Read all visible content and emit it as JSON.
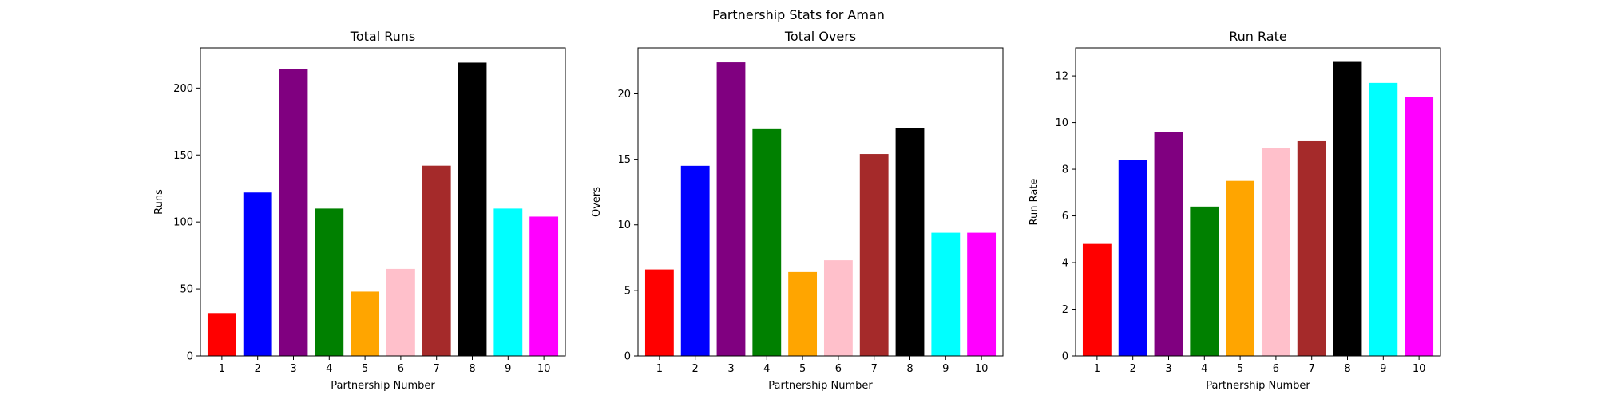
{
  "figure": {
    "title": "Partnership Stats for Aman"
  },
  "bar_colors": [
    "#ff0000",
    "#0000ff",
    "#800080",
    "#008000",
    "#ffa500",
    "#ffc0cb",
    "#a52a2a",
    "#000000",
    "#00ffff",
    "#ff00ff"
  ],
  "chart_data": [
    {
      "type": "bar",
      "title": "Total Runs",
      "xlabel": "Partnership Number",
      "ylabel": "Runs",
      "categories": [
        "1",
        "2",
        "3",
        "4",
        "5",
        "6",
        "7",
        "8",
        "9",
        "10"
      ],
      "values": [
        32,
        122,
        214,
        110,
        48,
        65,
        142,
        219,
        110,
        104
      ],
      "ylim": [
        0,
        230
      ],
      "yticks": [
        0,
        50,
        100,
        150,
        200
      ],
      "ytick_labels": [
        "0",
        "50",
        "100",
        "150",
        "200"
      ],
      "grid": false,
      "legend": "none"
    },
    {
      "type": "bar",
      "title": "Total Overs",
      "xlabel": "Partnership Number",
      "ylabel": "Overs",
      "categories": [
        "1",
        "2",
        "3",
        "4",
        "5",
        "6",
        "7",
        "8",
        "9",
        "10"
      ],
      "values": [
        6.6,
        14.5,
        22.4,
        17.3,
        6.4,
        7.3,
        15.4,
        17.4,
        9.4,
        9.4
      ],
      "ylim": [
        0,
        23.5
      ],
      "yticks": [
        0,
        5,
        10,
        15,
        20
      ],
      "ytick_labels": [
        "0",
        "5",
        "10",
        "15",
        "20"
      ],
      "grid": false,
      "legend": "none"
    },
    {
      "type": "bar",
      "title": "Run Rate",
      "xlabel": "Partnership Number",
      "ylabel": "Run Rate",
      "categories": [
        "1",
        "2",
        "3",
        "4",
        "5",
        "6",
        "7",
        "8",
        "9",
        "10"
      ],
      "values": [
        4.8,
        8.4,
        9.6,
        6.4,
        7.5,
        8.9,
        9.2,
        12.6,
        11.7,
        11.1
      ],
      "ylim": [
        0,
        13.2
      ],
      "yticks": [
        0,
        2,
        4,
        6,
        8,
        10,
        12
      ],
      "ytick_labels": [
        "0",
        "2",
        "4",
        "6",
        "8",
        "10",
        "12"
      ],
      "grid": false,
      "legend": "none"
    }
  ]
}
